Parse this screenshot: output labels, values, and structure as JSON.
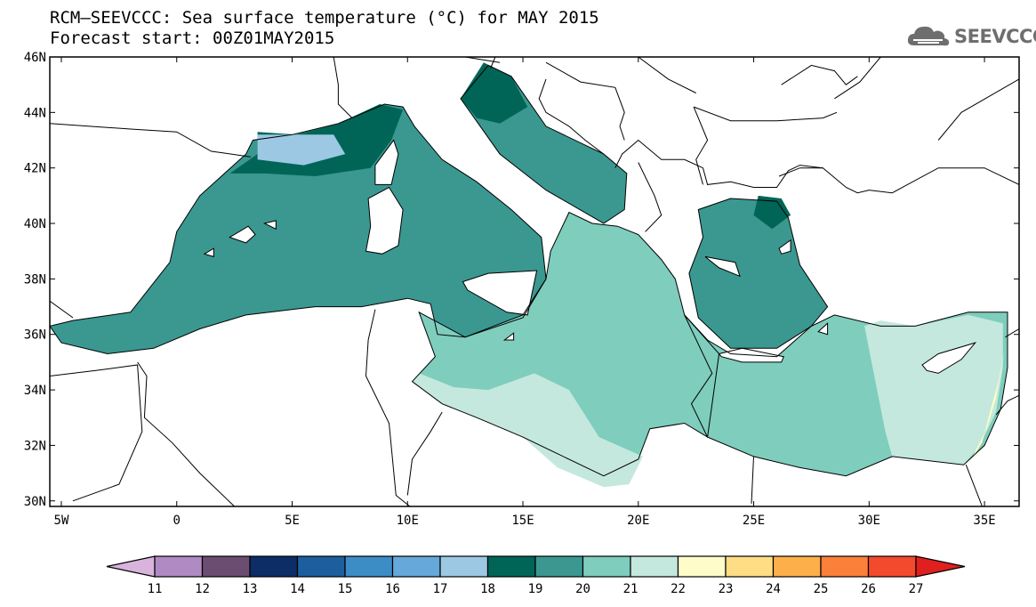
{
  "header": {
    "title_line1": "RCM—SEEVCCC: Sea surface temperature (°C) for MAY 2015",
    "title_line2": "Forecast start: 00Z01MAY2015"
  },
  "logo": {
    "text": "SEEVCCC",
    "icon": "cloud-icon",
    "color": "#6e6e6e"
  },
  "map": {
    "lon_range": [
      -5.5,
      36.5
    ],
    "lat_range": [
      29.8,
      46
    ],
    "x_ticks": [
      {
        "value": -5,
        "label": "5W"
      },
      {
        "value": 0,
        "label": "0"
      },
      {
        "value": 5,
        "label": "5E"
      },
      {
        "value": 10,
        "label": "10E"
      },
      {
        "value": 15,
        "label": "15E"
      },
      {
        "value": 20,
        "label": "20E"
      },
      {
        "value": 25,
        "label": "25E"
      },
      {
        "value": 30,
        "label": "30E"
      },
      {
        "value": 35,
        "label": "35E"
      }
    ],
    "y_ticks": [
      {
        "value": 30,
        "label": "30N"
      },
      {
        "value": 32,
        "label": "32N"
      },
      {
        "value": 34,
        "label": "34N"
      },
      {
        "value": 36,
        "label": "36N"
      },
      {
        "value": 38,
        "label": "38N"
      },
      {
        "value": 40,
        "label": "40N"
      },
      {
        "value": 42,
        "label": "42N"
      },
      {
        "value": 44,
        "label": "44N"
      },
      {
        "value": 46,
        "label": "46N"
      }
    ]
  },
  "colorbar": {
    "labels": [
      "11",
      "12",
      "13",
      "14",
      "15",
      "16",
      "17",
      "18",
      "19",
      "20",
      "21",
      "22",
      "23",
      "24",
      "25",
      "26",
      "27"
    ],
    "colors": [
      "#d8b4dc",
      "#b08ac2",
      "#6b4d72",
      "#0c2d66",
      "#1d5f9e",
      "#3c8cc6",
      "#66a8da",
      "#9cc8e4",
      "#006557",
      "#3a9890",
      "#7ecdbd",
      "#c4e8de",
      "#fefcc8",
      "#fedd85",
      "#fdb04a",
      "#fb803a",
      "#f3492d",
      "#e01f1f"
    ]
  },
  "regions": [
    {
      "name": "west-med",
      "temp": 19,
      "pts": [
        [
          -5.5,
          36.3
        ],
        [
          -5,
          35.7
        ],
        [
          -3,
          35.3
        ],
        [
          -1,
          35.5
        ],
        [
          1,
          36.2
        ],
        [
          3,
          36.7
        ],
        [
          6,
          37
        ],
        [
          8,
          37
        ],
        [
          10,
          37.3
        ],
        [
          11,
          37.1
        ],
        [
          11.3,
          36
        ],
        [
          12.5,
          35.9
        ],
        [
          15,
          36.6
        ],
        [
          16,
          38
        ],
        [
          15.8,
          39.5
        ],
        [
          14.5,
          40.5
        ],
        [
          13,
          41.5
        ],
        [
          11.5,
          42.3
        ],
        [
          10.3,
          43.5
        ],
        [
          9.8,
          44.2
        ],
        [
          9,
          44.3
        ],
        [
          7,
          43.6
        ],
        [
          5,
          43.2
        ],
        [
          3.3,
          43
        ],
        [
          3,
          42.5
        ],
        [
          1,
          41
        ],
        [
          0,
          39.7
        ],
        [
          -0.3,
          38.6
        ],
        [
          -2,
          36.8
        ],
        [
          -4.5,
          36.5
        ]
      ]
    },
    {
      "name": "liguro-provencal",
      "temp": 18,
      "pts": [
        [
          2.3,
          41.8
        ],
        [
          3.5,
          42.5
        ],
        [
          3.5,
          43.3
        ],
        [
          5.2,
          43.2
        ],
        [
          7,
          43.6
        ],
        [
          8.8,
          44.3
        ],
        [
          9.8,
          44.1
        ],
        [
          9.3,
          43
        ],
        [
          8.4,
          42
        ],
        [
          6,
          41.7
        ],
        [
          3.8,
          41.8
        ]
      ]
    },
    {
      "name": "lion-cold",
      "temp": 17,
      "pts": [
        [
          3.5,
          42.3
        ],
        [
          3.5,
          43.2
        ],
        [
          5,
          43.2
        ],
        [
          6.8,
          43.2
        ],
        [
          7.3,
          42.5
        ],
        [
          5.5,
          42.1
        ]
      ]
    },
    {
      "name": "adriatic",
      "temp": 19,
      "pts": [
        [
          12.3,
          44.5
        ],
        [
          13.5,
          45.7
        ],
        [
          14.5,
          45.3
        ],
        [
          16,
          43.5
        ],
        [
          18.5,
          42.5
        ],
        [
          19.5,
          41.8
        ],
        [
          19.4,
          40.5
        ],
        [
          18.5,
          40
        ],
        [
          16,
          41.2
        ],
        [
          14,
          42.5
        ]
      ]
    },
    {
      "name": "north-adriatic",
      "temp": 18,
      "pts": [
        [
          12.3,
          44.5
        ],
        [
          13.3,
          45.8
        ],
        [
          14.5,
          45.3
        ],
        [
          15.2,
          44.2
        ],
        [
          14,
          43.6
        ],
        [
          13,
          43.8
        ]
      ]
    },
    {
      "name": "ionian",
      "temp": 20,
      "pts": [
        [
          10.5,
          36.8
        ],
        [
          11.2,
          35.2
        ],
        [
          10.2,
          34.3
        ],
        [
          11.5,
          33.5
        ],
        [
          13,
          33
        ],
        [
          15,
          32.3
        ],
        [
          18.5,
          30.9
        ],
        [
          20,
          31.5
        ],
        [
          20.5,
          32.6
        ],
        [
          22,
          32.8
        ],
        [
          23,
          32.3
        ],
        [
          23.5,
          35.3
        ],
        [
          22,
          36.7
        ],
        [
          21.6,
          38
        ],
        [
          21,
          38.7
        ],
        [
          20,
          39.6
        ],
        [
          19.1,
          39.9
        ],
        [
          18,
          40
        ],
        [
          17,
          40.4
        ],
        [
          16.2,
          39
        ],
        [
          16,
          38
        ],
        [
          15,
          36.7
        ],
        [
          12.5,
          35.9
        ]
      ]
    },
    {
      "name": "gulf-sirte",
      "temp": 21,
      "pts": [
        [
          10.2,
          34.3
        ],
        [
          11.5,
          33.5
        ],
        [
          13,
          33
        ],
        [
          15,
          32.3
        ],
        [
          16.5,
          31.2
        ],
        [
          18.5,
          30.5
        ],
        [
          19.6,
          30.6
        ],
        [
          20.2,
          31.6
        ],
        [
          18.3,
          32.3
        ],
        [
          17,
          34
        ],
        [
          15.5,
          34.6
        ],
        [
          13.5,
          34
        ],
        [
          12,
          34.1
        ],
        [
          10.5,
          34.6
        ]
      ]
    },
    {
      "name": "aegean",
      "temp": 19,
      "pts": [
        [
          22.6,
          36.6
        ],
        [
          22.2,
          38.2
        ],
        [
          22.8,
          39.5
        ],
        [
          22.6,
          40.5
        ],
        [
          24,
          40.9
        ],
        [
          26,
          40.8
        ],
        [
          26.5,
          40.2
        ],
        [
          27,
          38.5
        ],
        [
          28.2,
          37
        ],
        [
          27.5,
          36.3
        ],
        [
          26,
          35.5
        ],
        [
          24,
          35.5
        ]
      ]
    },
    {
      "name": "marmara-north",
      "temp": 18,
      "pts": [
        [
          25,
          40.3
        ],
        [
          25.2,
          41
        ],
        [
          26.2,
          40.9
        ],
        [
          26.6,
          40.3
        ],
        [
          25.8,
          39.8
        ]
      ]
    },
    {
      "name": "levantine",
      "temp": 20,
      "pts": [
        [
          22,
          36.7
        ],
        [
          23,
          35.8
        ],
        [
          24,
          35.3
        ],
        [
          26,
          35.2
        ],
        [
          27.5,
          36.3
        ],
        [
          28.5,
          36.7
        ],
        [
          30.5,
          36.3
        ],
        [
          32,
          36.3
        ],
        [
          34.3,
          36.8
        ],
        [
          36,
          36.8
        ],
        [
          36,
          34.8
        ],
        [
          35.7,
          33.3
        ],
        [
          35,
          32
        ],
        [
          34.1,
          31.3
        ],
        [
          31,
          31.6
        ],
        [
          29,
          30.9
        ],
        [
          27,
          31.2
        ],
        [
          25,
          31.6
        ],
        [
          23,
          32.3
        ],
        [
          22.3,
          33.5
        ],
        [
          23.2,
          34.6
        ]
      ]
    },
    {
      "name": "east-levantine",
      "temp": 21,
      "pts": [
        [
          29.8,
          36.3
        ],
        [
          30.5,
          36.5
        ],
        [
          32,
          36.3
        ],
        [
          34.3,
          36.7
        ],
        [
          35.8,
          36.4
        ],
        [
          35.8,
          34.8
        ],
        [
          35.5,
          33.2
        ],
        [
          34.8,
          32
        ],
        [
          34.1,
          31.3
        ],
        [
          31,
          31.6
        ],
        [
          30.7,
          32.5
        ]
      ]
    },
    {
      "name": "israel-coast",
      "temp": 22,
      "pts": [
        [
          34.9,
          32.1
        ],
        [
          35.2,
          33.1
        ],
        [
          35.6,
          34.3
        ],
        [
          35.9,
          35.5
        ],
        [
          35.5,
          33.7
        ],
        [
          35.1,
          32.6
        ],
        [
          34.3,
          31.3
        ]
      ]
    }
  ],
  "islands": [
    {
      "name": "corsica",
      "pts": [
        [
          8.6,
          41.4
        ],
        [
          9.3,
          41.4
        ],
        [
          9.6,
          42.5
        ],
        [
          9.4,
          43
        ],
        [
          8.6,
          42.1
        ]
      ]
    },
    {
      "name": "sardinia",
      "pts": [
        [
          8.2,
          39
        ],
        [
          8.9,
          38.9
        ],
        [
          9.6,
          39.2
        ],
        [
          9.8,
          40.5
        ],
        [
          9.2,
          41.3
        ],
        [
          8.3,
          40.9
        ],
        [
          8.4,
          39.9
        ]
      ]
    },
    {
      "name": "sicily",
      "pts": [
        [
          12.4,
          37.9
        ],
        [
          13.5,
          38.2
        ],
        [
          15.6,
          38.3
        ],
        [
          15.2,
          36.7
        ],
        [
          14.3,
          36.8
        ],
        [
          12.6,
          37.6
        ]
      ]
    },
    {
      "name": "crete",
      "pts": [
        [
          23.5,
          35.3
        ],
        [
          24.5,
          35.5
        ],
        [
          26.3,
          35.2
        ],
        [
          26.2,
          35
        ],
        [
          24.5,
          35.0
        ],
        [
          23.6,
          35.2
        ]
      ]
    },
    {
      "name": "cyprus",
      "pts": [
        [
          32.3,
          34.9
        ],
        [
          33,
          35.3
        ],
        [
          34.6,
          35.7
        ],
        [
          34,
          35.1
        ],
        [
          33,
          34.6
        ],
        [
          32.5,
          34.7
        ]
      ]
    },
    {
      "name": "mallorca",
      "pts": [
        [
          2.3,
          39.5
        ],
        [
          3.1,
          39.9
        ],
        [
          3.4,
          39.6
        ],
        [
          3,
          39.3
        ]
      ]
    },
    {
      "name": "menorca",
      "pts": [
        [
          3.8,
          40
        ],
        [
          4.3,
          40.1
        ],
        [
          4.3,
          39.8
        ]
      ]
    },
    {
      "name": "ibiza",
      "pts": [
        [
          1.2,
          38.9
        ],
        [
          1.6,
          39.1
        ],
        [
          1.6,
          38.8
        ]
      ]
    },
    {
      "name": "lesbos",
      "pts": [
        [
          26.1,
          39.1
        ],
        [
          26.6,
          39.4
        ],
        [
          26.6,
          39
        ],
        [
          26.2,
          38.9
        ]
      ]
    },
    {
      "name": "rhodes",
      "pts": [
        [
          27.8,
          36.1
        ],
        [
          28.2,
          36.4
        ],
        [
          28.2,
          36
        ]
      ]
    },
    {
      "name": "euboea",
      "pts": [
        [
          22.9,
          38.8
        ],
        [
          24.2,
          38.6
        ],
        [
          24.4,
          38.1
        ],
        [
          23.5,
          38.4
        ]
      ]
    },
    {
      "name": "malta",
      "pts": [
        [
          14.2,
          35.8
        ],
        [
          14.6,
          36.05
        ],
        [
          14.6,
          35.8
        ]
      ]
    }
  ],
  "borders": [
    [
      [
        -5.5,
        43.6
      ],
      [
        -2,
        43.4
      ],
      [
        0,
        43.3
      ],
      [
        1.5,
        42.6
      ],
      [
        3.2,
        42.4
      ]
    ],
    [
      [
        -5.5,
        37.2
      ],
      [
        -4.5,
        36.6
      ]
    ],
    [
      [
        -5.5,
        34.5
      ],
      [
        -3.5,
        34.7
      ],
      [
        -1.7,
        34.9
      ],
      [
        -1.5,
        32.5
      ],
      [
        -2.5,
        30.6
      ],
      [
        -4.5,
        30
      ]
    ],
    [
      [
        -1.7,
        35
      ],
      [
        -1.3,
        34.5
      ],
      [
        -1.4,
        33
      ],
      [
        -0.2,
        32.1
      ],
      [
        1,
        31
      ],
      [
        2.5,
        29.8
      ]
    ],
    [
      [
        8.6,
        36.9
      ],
      [
        8.3,
        35.8
      ],
      [
        8.2,
        34.5
      ],
      [
        9.2,
        32.8
      ],
      [
        9.5,
        30.2
      ],
      [
        10.1,
        29.8
      ]
    ],
    [
      [
        11.5,
        33.2
      ],
      [
        11,
        32.5
      ],
      [
        10.2,
        31.5
      ],
      [
        10,
        30.2
      ]
    ],
    [
      [
        25,
        31.6
      ],
      [
        24.9,
        29.9
      ]
    ],
    [
      [
        34.2,
        31.3
      ],
      [
        34.9,
        29.8
      ]
    ],
    [
      [
        35.5,
        33.1
      ],
      [
        36,
        33.6
      ],
      [
        36.5,
        33.8
      ]
    ],
    [
      [
        35.9,
        35.9
      ],
      [
        36.5,
        36.2
      ]
    ],
    [
      [
        26.1,
        41.7
      ],
      [
        27,
        42
      ],
      [
        28,
        42
      ],
      [
        29,
        41.3
      ],
      [
        29.5,
        41.1
      ],
      [
        30,
        41.2
      ],
      [
        31,
        41.1
      ],
      [
        33,
        42
      ],
      [
        35,
        42
      ],
      [
        36.5,
        41.4
      ]
    ],
    [
      [
        7.6,
        43.8
      ],
      [
        7,
        44.3
      ],
      [
        7,
        45
      ],
      [
        6.8,
        46
      ]
    ],
    [
      [
        13.6,
        45.6
      ],
      [
        13.8,
        46
      ],
      [
        15,
        46
      ]
    ],
    [
      [
        19,
        42
      ],
      [
        19.3,
        42.5
      ],
      [
        20,
        43
      ],
      [
        21,
        42.3
      ],
      [
        22,
        42.3
      ],
      [
        22.8,
        42
      ],
      [
        23,
        41.4
      ],
      [
        24,
        41.5
      ],
      [
        25,
        41.3
      ],
      [
        26,
        41.3
      ],
      [
        26.5,
        41.9
      ],
      [
        27,
        42.1
      ],
      [
        28,
        42
      ]
    ],
    [
      [
        20,
        42.2
      ],
      [
        20.7,
        41
      ],
      [
        21,
        40.3
      ],
      [
        20.3,
        39.7
      ]
    ],
    [
      [
        22.8,
        41.4
      ],
      [
        22.5,
        42.3
      ],
      [
        23,
        43
      ],
      [
        22.4,
        44.2
      ]
    ],
    [
      [
        16,
        45.8
      ],
      [
        17.5,
        45.1
      ],
      [
        19,
        44.9
      ],
      [
        19.4,
        44
      ],
      [
        19.2,
        43.5
      ],
      [
        19.4,
        43
      ]
    ],
    [
      [
        16,
        45.2
      ],
      [
        15.7,
        44.5
      ],
      [
        16,
        44
      ],
      [
        17,
        43.5
      ],
      [
        17.7,
        43
      ],
      [
        18.5,
        42.5
      ]
    ],
    [
      [
        22.4,
        44.2
      ],
      [
        24,
        43.7
      ],
      [
        26,
        43.7
      ],
      [
        28,
        43.8
      ],
      [
        28.6,
        44
      ]
    ],
    [
      [
        26.2,
        45
      ],
      [
        27.5,
        45.7
      ],
      [
        28.5,
        45.5
      ],
      [
        29,
        45
      ],
      [
        29.5,
        45.3
      ]
    ],
    [
      [
        20,
        46
      ],
      [
        21.3,
        45.2
      ],
      [
        22.5,
        44.7
      ]
    ],
    [
      [
        12.5,
        46
      ],
      [
        14,
        45.8
      ]
    ],
    [
      [
        33,
        43
      ],
      [
        34,
        44
      ],
      [
        36.5,
        45.2
      ]
    ],
    [
      [
        28.5,
        44.5
      ],
      [
        29.6,
        45.1
      ],
      [
        30.5,
        46
      ]
    ]
  ]
}
